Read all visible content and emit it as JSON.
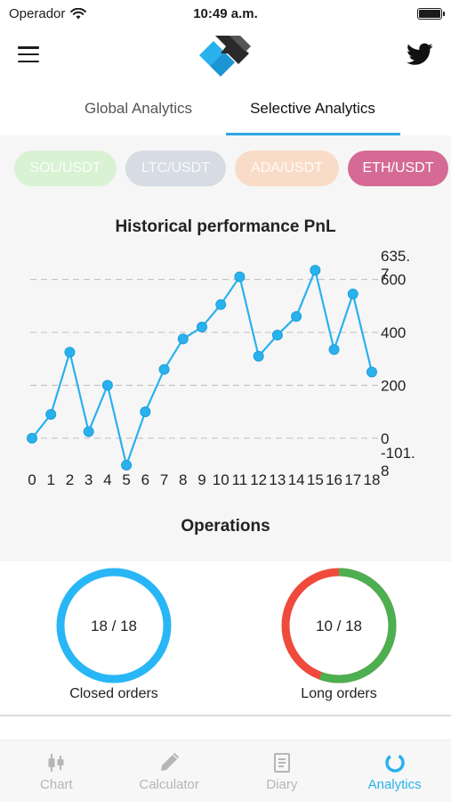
{
  "status_bar": {
    "carrier": "Operador",
    "time": "10:49 a.m."
  },
  "header": {
    "logo_icon": "app-logo",
    "twitter_icon": "twitter-icon",
    "menu_icon": "menu-icon"
  },
  "tabs": [
    {
      "label": "Global Analytics",
      "active": false
    },
    {
      "label": "Selective Analytics",
      "active": true
    }
  ],
  "pairs": [
    {
      "label": "SOL/USDT",
      "color": "#d9f2d3",
      "selected": false
    },
    {
      "label": "LTC/USDT",
      "color": "#d6dbe4",
      "selected": false
    },
    {
      "label": "ADA/USDT",
      "color": "#f9dcc8",
      "selected": false
    },
    {
      "label": "ETH/USDT",
      "color": "#d56a94",
      "selected": true
    }
  ],
  "chart_data": {
    "type": "line",
    "title": "Historical performance PnL",
    "x": [
      0,
      1,
      2,
      3,
      4,
      5,
      6,
      7,
      8,
      9,
      10,
      11,
      12,
      13,
      14,
      15,
      16,
      17,
      18
    ],
    "values": [
      0,
      90,
      325,
      25,
      200,
      -101.8,
      100,
      260,
      375,
      420,
      505,
      610,
      310,
      390,
      460,
      635,
      335,
      545,
      250
    ],
    "y_ticks": [
      "635.7",
      "600",
      "400",
      "200",
      "0",
      "-101.8"
    ],
    "ylim": [
      -101.8,
      635.7
    ],
    "grid": true,
    "color": "#29b1ee"
  },
  "operations_title": "Operations",
  "closed_orders": {
    "value": "18 / 18",
    "label": "Closed orders",
    "fraction": 1.0,
    "color": "#29b6f6"
  },
  "long_orders": {
    "value": "10 / 18",
    "label": "Long orders",
    "fraction": 0.5556,
    "long_color": "#4caf50",
    "short_color": "#ef4a3c"
  },
  "bottom_nav": [
    {
      "label": "Chart",
      "icon": "candlestick-icon",
      "active": false
    },
    {
      "label": "Calculator",
      "icon": "pencil-icon",
      "active": false
    },
    {
      "label": "Diary",
      "icon": "diary-icon",
      "active": false
    },
    {
      "label": "Analytics",
      "icon": "analytics-ring-icon",
      "active": true
    }
  ]
}
